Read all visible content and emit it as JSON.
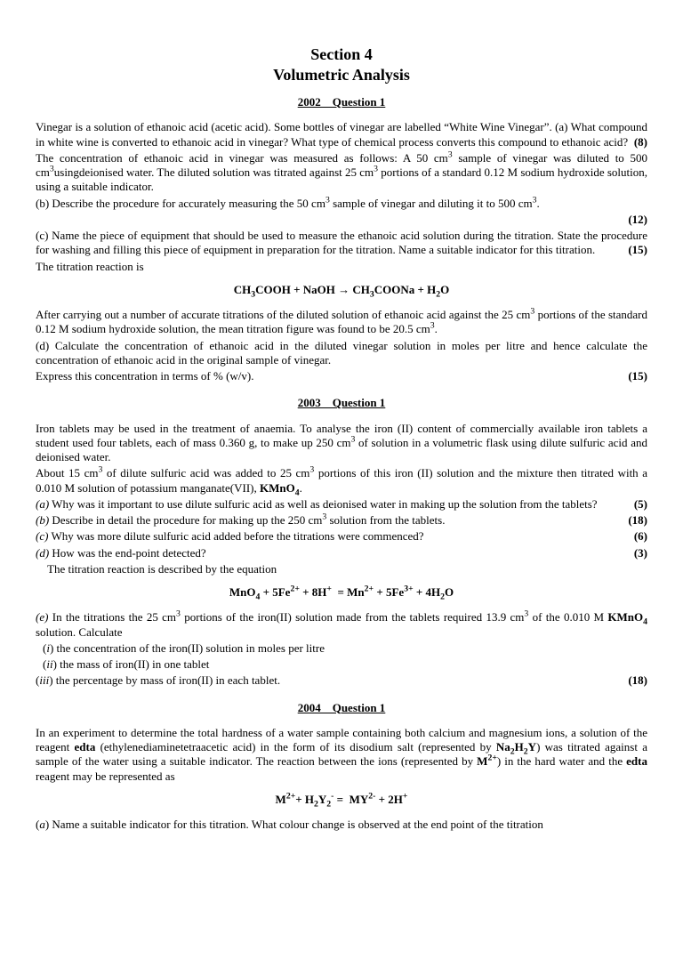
{
  "header": {
    "section": "Section 4",
    "topic": "Volumetric Analysis"
  },
  "q2002": {
    "header": "2002    Question 1",
    "p1": "Vinegar is a solution of ethanoic acid (acetic acid). Some bottles of vinegar are labelled “White Wine Vinegar”. (a) What compound in white wine is converted to ethanoic acid in vinegar?  What type of chemical process converts this compound to ethanoic acid?",
    "m1": "(8)",
    "p2a": "The concentration of ethanoic acid in vinegar was measured as follows: A 50 cm",
    "p2b": " sample of vinegar was diluted to 500 cm",
    "p2c": "usingdeionised water. The diluted solution was titrated against 25 cm",
    "p2d": " portions of a standard 0.12 M sodium hydroxide solution, using a suitable indicator.",
    "p3a": "(b) Describe the procedure for accurately measuring the 50 cm",
    "p3b": " sample of vinegar and diluting it to 500 cm",
    "p3c": ".",
    "m2": "(12)",
    "p4": "(c) Name the piece of equipment that should be used to measure the ethanoic acid solution during the titration. State the procedure for washing and filling this piece of equipment in preparation for the titration. Name a suitable indicator for this titration.",
    "m3": "(15)",
    "p5": "The titration reaction is",
    "eq_a": "CH",
    "eq_b": "COOH + NaOH → CH",
    "eq_c": "COONa + H",
    "eq_d": "O",
    "p6a": "After carrying out a number of accurate titrations of the diluted solution of ethanoic acid against the 25 cm",
    "p6b": " portions of the standard 0.12 M sodium hydroxide solution, the mean titration figure was found to be 20.5 cm",
    "p6c": ".",
    "p7": "(d) Calculate the concentration of ethanoic acid in the diluted vinegar solution in moles per litre and hence calculate the concentration of ethanoic acid in the original sample of vinegar.",
    "p8": "Express this concentration in terms of % (w/v).",
    "m4": "(15)"
  },
  "q2003": {
    "header": "2003    Question 1",
    "p1a": "Iron tablets may be used in the treatment of anaemia.  To analyse the iron (II) content of commercially available iron tablets a student used four tablets, each of mass 0.360 g, to make up 250 cm",
    "p1b": " of solution in a volumetric flask using dilute sulfuric acid and deionised water.",
    "p2a": "About 15 cm",
    "p2b": " of dilute sulfuric acid was added to 25 cm",
    "p2c": " portions of this iron (II) solution and the mixture then titrated with a 0.010 M solution of potassium manganate(VII), ",
    "kmno4": "KMnO",
    "p2d": ".",
    "pa": "(a) Why was it important to use dilute sulfuric acid as well as deionised water in making up the solution from the tablets?",
    "ma": "(5)",
    "pb_a": "(b) Describe in detail the procedure for making up the 250 cm",
    "pb_b": " solution from the tablets.",
    "mb": "(18)",
    "pc": "(c) Why was more dilute sulfuric acid added before the titrations were commenced?",
    "mc": "(6)",
    "pd": "(d) How was the end-point detected?",
    "md": "(3)",
    "pe": "    The titration reaction is described by the equation",
    "pf_a": "(e) In the titrations the 25 cm",
    "pf_b": " portions of the iron(II) solution made from the tablets required 13.9 cm",
    "pf_c": " of the 0.010 M ",
    "pf_d": " solution. Calculate",
    "pi": "(i) the concentration of the iron(II) solution in moles per litre",
    "pii": "(ii) the mass of iron(II) in one tablet",
    "piii": "(iii) the percentage by mass of iron(II) in each tablet.",
    "me": "(18)"
  },
  "q2004": {
    "header": "2004    Question 1",
    "p1a": "In an experiment to determine the total hardness of a water sample containing both calcium and magnesium ions, a solution of the reagent ",
    "edta": "edta",
    "p1b": " (ethylenediaminetetraacetic acid) in the form of its disodium salt (represented by ",
    "na2h2y": "Na",
    "h2y": "H",
    "y": "Y",
    "p1c": ") was titrated against a sample of the water using a suitable indicator. The reaction between the ions (represented by ",
    "m2plus": "M",
    "p1d": ") in the hard water and the ",
    "p1e": " reagent may be represented as",
    "p2": "(a) Name a suitable indicator for this titration. What colour change is observed at the end point of the titration"
  }
}
